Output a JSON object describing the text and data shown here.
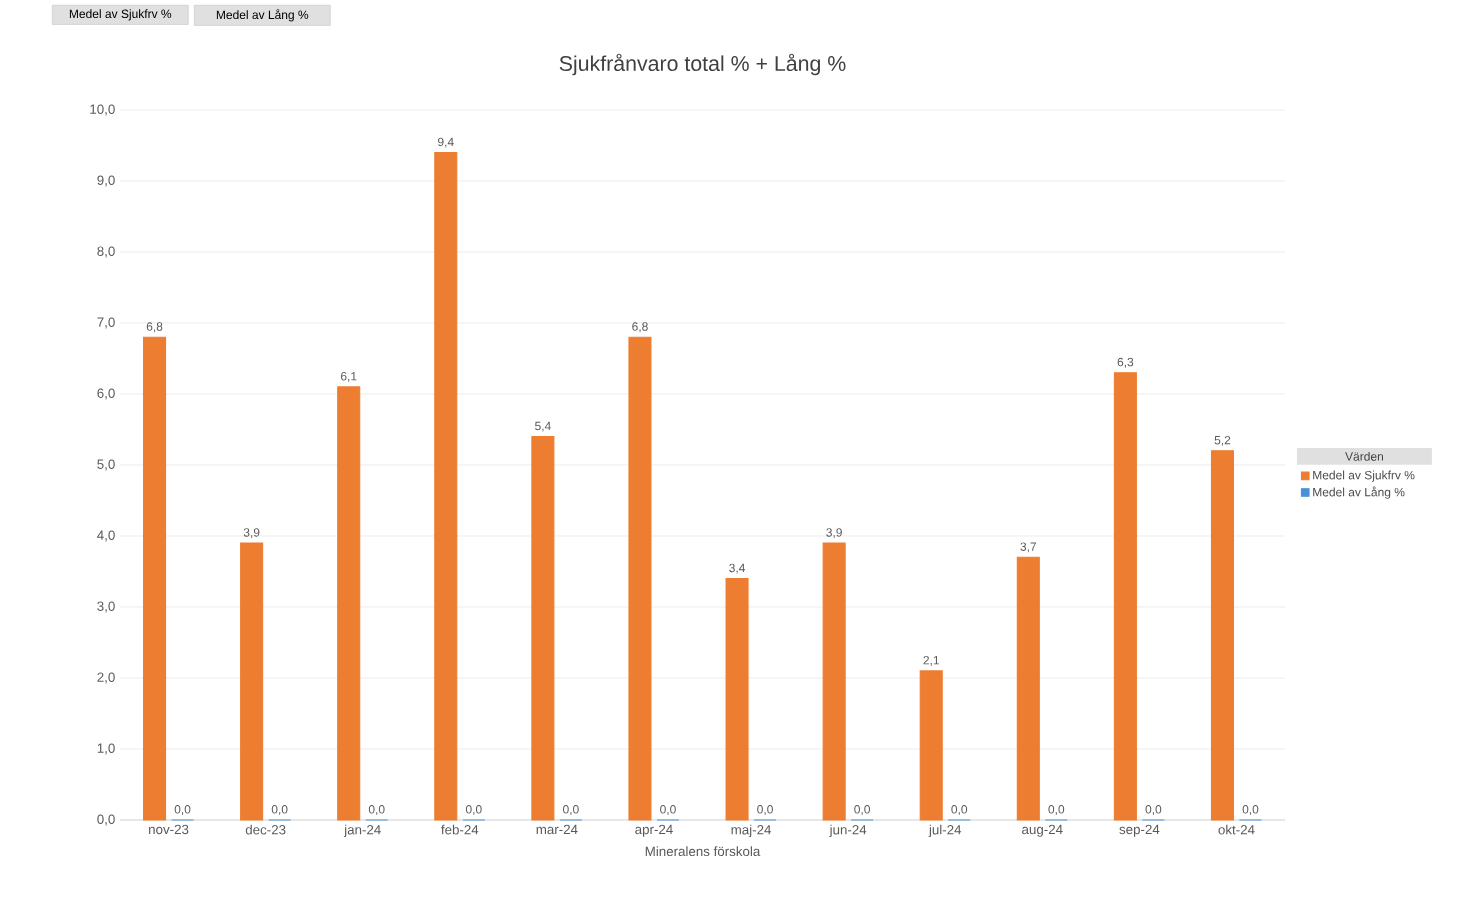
{
  "chart_data": {
    "type": "bar",
    "title": "Sjukfrånvaro total % + Lång %",
    "xlabel": "Mineralens förskola",
    "legend_title": "Värden",
    "categories": [
      "nov-23",
      "dec-23",
      "jan-24",
      "feb-24",
      "mar-24",
      "apr-24",
      "maj-24",
      "jun-24",
      "jul-24",
      "aug-24",
      "sep-24",
      "okt-24"
    ],
    "series": [
      {
        "name": "Medel av Sjukfrv %",
        "color": "#ed7d31",
        "values": [
          6.8,
          3.9,
          6.1,
          9.4,
          5.4,
          6.8,
          3.4,
          3.9,
          2.1,
          3.7,
          6.3,
          5.2
        ],
        "value_labels": [
          "6,8",
          "3,9",
          "6,1",
          "9,4",
          "5,4",
          "6,8",
          "3,4",
          "3,9",
          "2,1",
          "3,7",
          "6,3",
          "5,2"
        ]
      },
      {
        "name": "Medel av Lång %",
        "color": "#4a90d9",
        "values": [
          0,
          0,
          0,
          0,
          0,
          0,
          0,
          0,
          0,
          0,
          0,
          0
        ],
        "value_labels": [
          "0,0",
          "0,0",
          "0,0",
          "0,0",
          "0,0",
          "0,0",
          "0,0",
          "0,0",
          "0,0",
          "0,0",
          "0,0",
          "0,0"
        ]
      }
    ],
    "ylim": [
      0,
      10
    ],
    "yticks": [
      {
        "value": 0,
        "label": "0,0"
      },
      {
        "value": 1,
        "label": "1,0"
      },
      {
        "value": 2,
        "label": "2,0"
      },
      {
        "value": 3,
        "label": "3,0"
      },
      {
        "value": 4,
        "label": "4,0"
      },
      {
        "value": 5,
        "label": "5,0"
      },
      {
        "value": 6,
        "label": "6,0"
      },
      {
        "value": 7,
        "label": "7,0"
      },
      {
        "value": 8,
        "label": "8,0"
      },
      {
        "value": 9,
        "label": "9,0"
      },
      {
        "value": 10,
        "label": "10,0"
      }
    ],
    "grid": "y",
    "legend": "right",
    "annotations": [
      "Medel av Sjukfrv %",
      "Medel av Lång %"
    ]
  }
}
